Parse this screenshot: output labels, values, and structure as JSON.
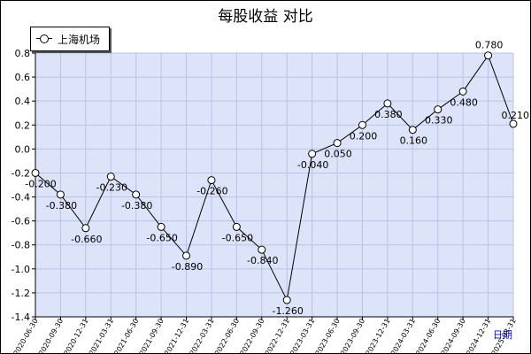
{
  "chart_data": {
    "type": "line",
    "title": "每股收益  对比",
    "xlabel": "日期",
    "ylabel": "",
    "ylim": [
      -1.4,
      0.8
    ],
    "y_ticks": [
      "0.8",
      "0.6",
      "0.4",
      "0.2",
      "0.0",
      "-0.2",
      "-0.4",
      "-0.6",
      "-0.8",
      "-1.0",
      "-1.2",
      "-1.4"
    ],
    "grid": true,
    "legend": "top-left",
    "categories": [
      "2020-06-30",
      "2020-09-30",
      "2020-12-31",
      "2021-03-31",
      "2021-06-30",
      "2021-09-30",
      "2021-12-31",
      "2022-03-31",
      "2022-06-30",
      "2022-09-30",
      "2022-12-31",
      "2023-03-31",
      "2023-06-30",
      "2023-09-30",
      "2023-12-31",
      "2024-03-31",
      "2024-06-30",
      "2024-09-30",
      "2024-12-31",
      "2025-03-31"
    ],
    "series": [
      {
        "name": "上海机场",
        "values": [
          -0.2,
          -0.38,
          -0.66,
          -0.23,
          -0.38,
          -0.65,
          -0.89,
          -0.26,
          -0.65,
          -0.84,
          -1.26,
          -0.04,
          0.05,
          0.2,
          0.38,
          0.16,
          0.33,
          0.48,
          0.78,
          0.21
        ],
        "labels": [
          "-0.200",
          "-0.380",
          "-0.660",
          "-0.230",
          "-0.380",
          "-0.650",
          "-0.890",
          "-0.260",
          "-0.650",
          "-0.840",
          "-1.260",
          "-0.040",
          "0.050",
          "0.200",
          "0.380",
          "0.160",
          "0.330",
          "0.480",
          "0.780",
          "0.210"
        ]
      }
    ]
  },
  "colors": {
    "plot_bg": "#dde3f8",
    "grid": "#b9c3e6",
    "line": "#000000",
    "axis": "#000000"
  }
}
